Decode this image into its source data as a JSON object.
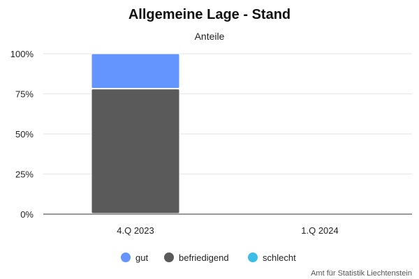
{
  "chart_data": {
    "type": "bar",
    "stacked": true,
    "title": "Allgemeine Lage - Stand",
    "subtitle": "Anteile",
    "xlabel": "",
    "ylabel": "",
    "categories": [
      "4.Q 2023",
      "1.Q 2024"
    ],
    "series": [
      {
        "name": "gut",
        "color": "#6495ff",
        "values": [
          22,
          null
        ]
      },
      {
        "name": "befriedigend",
        "color": "#5a5a5a",
        "values": [
          78,
          null
        ]
      },
      {
        "name": "schlecht",
        "color": "#3cbde8",
        "values": [
          0,
          null
        ]
      }
    ],
    "ylim": [
      0,
      100
    ],
    "yticks": [
      "0%",
      "25%",
      "50%",
      "75%",
      "100%"
    ],
    "grid": true,
    "legend": "bottom-center",
    "credit": "Amt für Statistik Liechtenstein"
  }
}
